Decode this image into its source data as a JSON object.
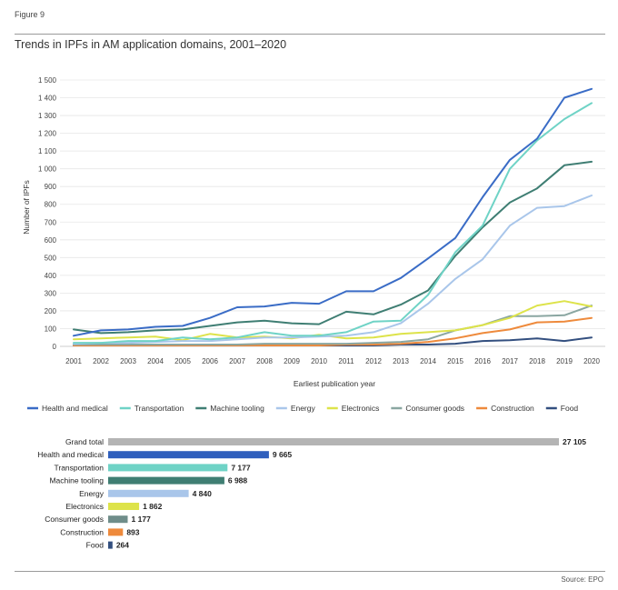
{
  "figure": {
    "label": "Figure 9",
    "title": "Trends in IPFs in AM application domains, 2001–2020",
    "source": "Source: EPO"
  },
  "chart_data": [
    {
      "type": "line",
      "title": "Trends in IPFs in AM application domains, 2001–2020",
      "xlabel": "Earliest publication year",
      "ylabel": "Number of IPFs",
      "ylim": [
        0,
        1500
      ],
      "yticks": [
        0,
        100,
        200,
        300,
        400,
        500,
        600,
        700,
        800,
        900,
        1000,
        1100,
        1200,
        1300,
        1400,
        1500
      ],
      "ytick_labels": [
        "0",
        "100",
        "200",
        "300",
        "400",
        "500",
        "600",
        "700",
        "800",
        "900",
        "1 000",
        "1 100",
        "1 200",
        "1 300",
        "1 400",
        "1 500"
      ],
      "x": [
        "2001",
        "2002",
        "2003",
        "2004",
        "2005",
        "2006",
        "2007",
        "2008",
        "2009",
        "2010",
        "2011",
        "2012",
        "2013",
        "2014",
        "2015",
        "2016",
        "2017",
        "2018",
        "2019",
        "2020"
      ],
      "grid": true,
      "legend_position": "bottom",
      "series": [
        {
          "name": "Health and medical",
          "color": "#3a6cc6",
          "values": [
            60,
            90,
            95,
            110,
            115,
            160,
            220,
            225,
            245,
            240,
            310,
            310,
            385,
            495,
            610,
            840,
            1050,
            1170,
            1400,
            1450
          ]
        },
        {
          "name": "Transportation",
          "color": "#6fd3c6",
          "values": [
            20,
            20,
            30,
            30,
            50,
            40,
            50,
            80,
            60,
            60,
            80,
            140,
            145,
            290,
            530,
            680,
            1000,
            1160,
            1280,
            1370
          ]
        },
        {
          "name": "Machine tooling",
          "color": "#3f7e73",
          "values": [
            95,
            75,
            80,
            90,
            95,
            115,
            135,
            145,
            130,
            125,
            195,
            180,
            235,
            315,
            510,
            670,
            810,
            890,
            1020,
            1040
          ]
        },
        {
          "name": "Energy",
          "color": "#a9c6ea",
          "values": [
            15,
            20,
            20,
            25,
            30,
            30,
            40,
            50,
            50,
            55,
            60,
            80,
            130,
            240,
            380,
            490,
            680,
            780,
            790,
            850
          ]
        },
        {
          "name": "Electronics",
          "color": "#dde34a",
          "values": [
            40,
            45,
            50,
            55,
            35,
            70,
            50,
            55,
            45,
            65,
            45,
            50,
            70,
            80,
            90,
            120,
            160,
            230,
            255,
            225
          ]
        },
        {
          "name": "Consumer goods",
          "color": "#8aa6a1",
          "values": [
            10,
            10,
            10,
            10,
            10,
            10,
            10,
            15,
            15,
            15,
            15,
            20,
            25,
            40,
            90,
            120,
            170,
            170,
            175,
            230
          ]
        },
        {
          "name": "Construction",
          "color": "#ee8a3c",
          "values": [
            5,
            5,
            5,
            5,
            5,
            5,
            5,
            5,
            5,
            5,
            10,
            10,
            15,
            25,
            45,
            75,
            95,
            135,
            140,
            160
          ]
        },
        {
          "name": "Food",
          "color": "#334f7f",
          "values": [
            5,
            5,
            5,
            5,
            5,
            5,
            5,
            5,
            5,
            5,
            5,
            5,
            10,
            10,
            15,
            30,
            35,
            45,
            30,
            50
          ]
        }
      ]
    },
    {
      "type": "bar",
      "orientation": "horizontal",
      "categories": [
        "Grand total",
        "Health and medical",
        "Transportation",
        "Machine tooling",
        "Energy",
        "Electronics",
        "Consumer goods",
        "Construction",
        "Food"
      ],
      "values": [
        27105,
        9665,
        7177,
        6988,
        4840,
        1862,
        1177,
        893,
        264
      ],
      "value_labels": [
        "27 105",
        "9 665",
        "7 177",
        "6 988",
        "4 840",
        "1 862",
        "1 177",
        "893",
        "264"
      ],
      "colors": [
        "#b4b4b4",
        "#2f5fbd",
        "#6fd3c6",
        "#3f7e73",
        "#a9c6ea",
        "#dde34a",
        "#6f8d8a",
        "#ee8a3c",
        "#334f7f"
      ]
    }
  ]
}
